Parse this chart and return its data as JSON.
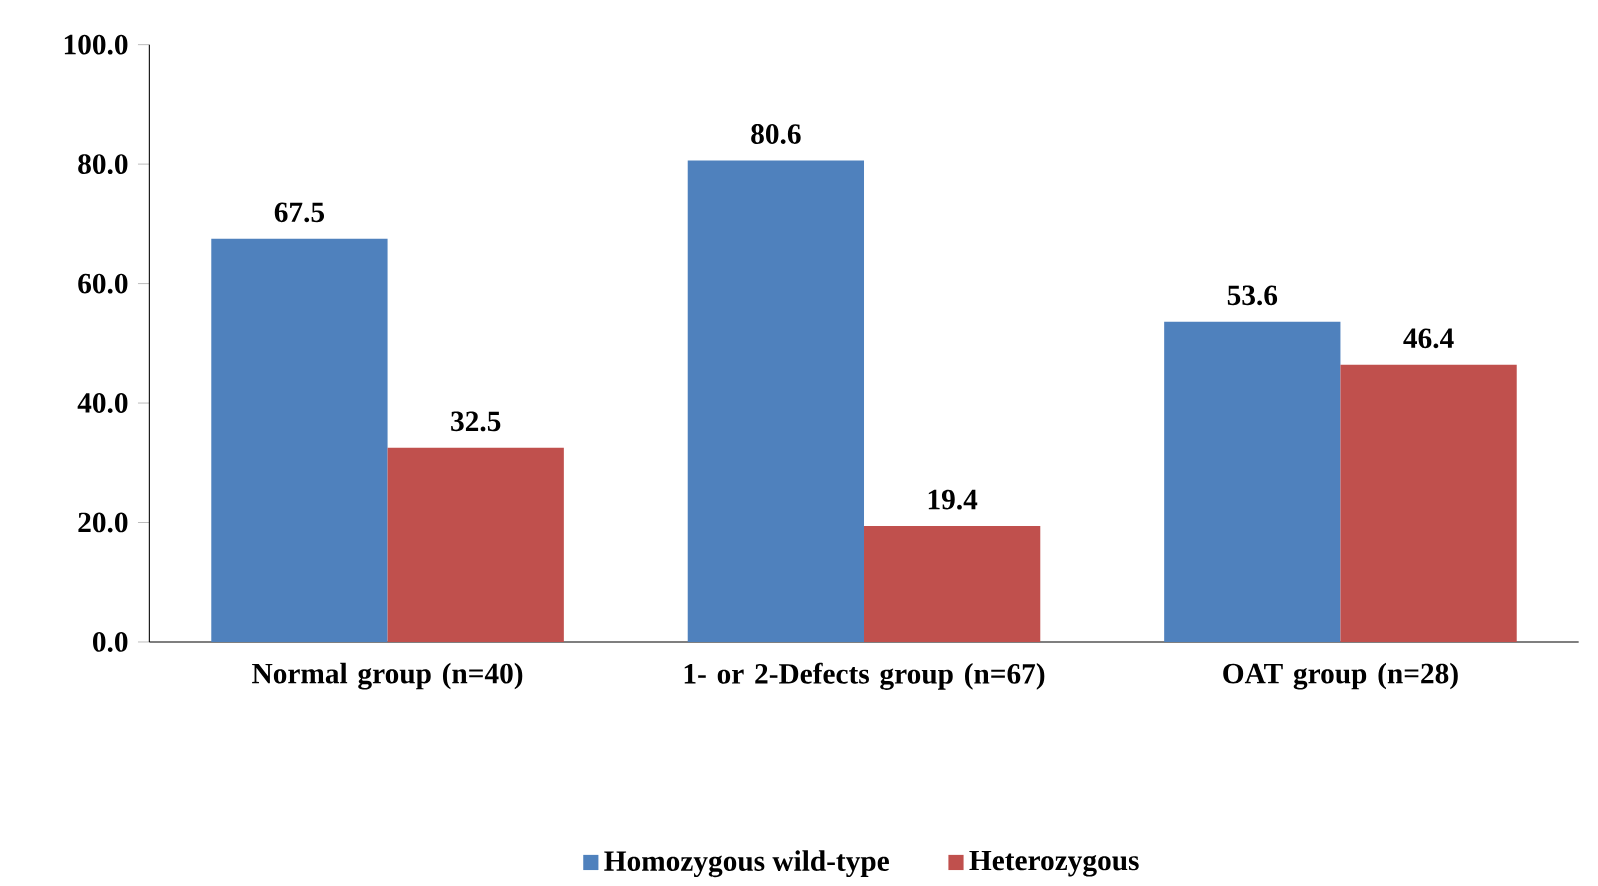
{
  "chart_data": {
    "type": "bar",
    "categories": [
      "Normal group (n=40)",
      "1- or 2-Defects group (n=67)",
      "OAT group (n=28)"
    ],
    "series": [
      {
        "name": "Homozygous wild-type",
        "color": "#4f81bd",
        "values": [
          67.5,
          80.6,
          53.6
        ]
      },
      {
        "name": "Heterozygous",
        "color": "#c0504d",
        "values": [
          32.5,
          19.4,
          46.4
        ]
      }
    ],
    "ylim": [
      0,
      100
    ],
    "yticks": [
      {
        "value": 0,
        "label": "0.0"
      },
      {
        "value": 20,
        "label": "20.0"
      },
      {
        "value": 40,
        "label": "40.0"
      },
      {
        "value": 60,
        "label": "60.0"
      },
      {
        "value": 80,
        "label": "80.0"
      },
      {
        "value": 100,
        "label": "100.0"
      }
    ],
    "data_labels": true,
    "grid": false,
    "legend": "bottom"
  }
}
